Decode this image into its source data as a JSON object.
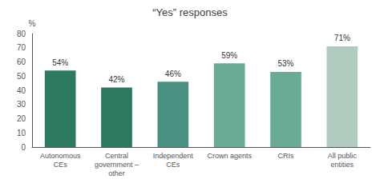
{
  "chart_data": {
    "type": "bar",
    "title": "“Yes” responses",
    "categories": [
      "Autonomous\nCEs",
      "Central\ngovernment –\nother",
      "Independent\nCEs",
      "Crown agents",
      "CRIs",
      "All public\nentities"
    ],
    "values": [
      54,
      42,
      46,
      59,
      53,
      71
    ],
    "value_labels": [
      "54%",
      "42%",
      "46%",
      "59%",
      "53%",
      "71%"
    ],
    "colors": [
      "#2d7a5f",
      "#2d7a5f",
      "#4a9080",
      "#6aab98",
      "#6aab98",
      "#b0ccbf"
    ],
    "ylabel": "%",
    "ylim": [
      0,
      80
    ],
    "yticks": [
      0,
      10,
      20,
      30,
      40,
      50,
      60,
      70,
      80
    ],
    "grid": false,
    "data_labels": true
  }
}
